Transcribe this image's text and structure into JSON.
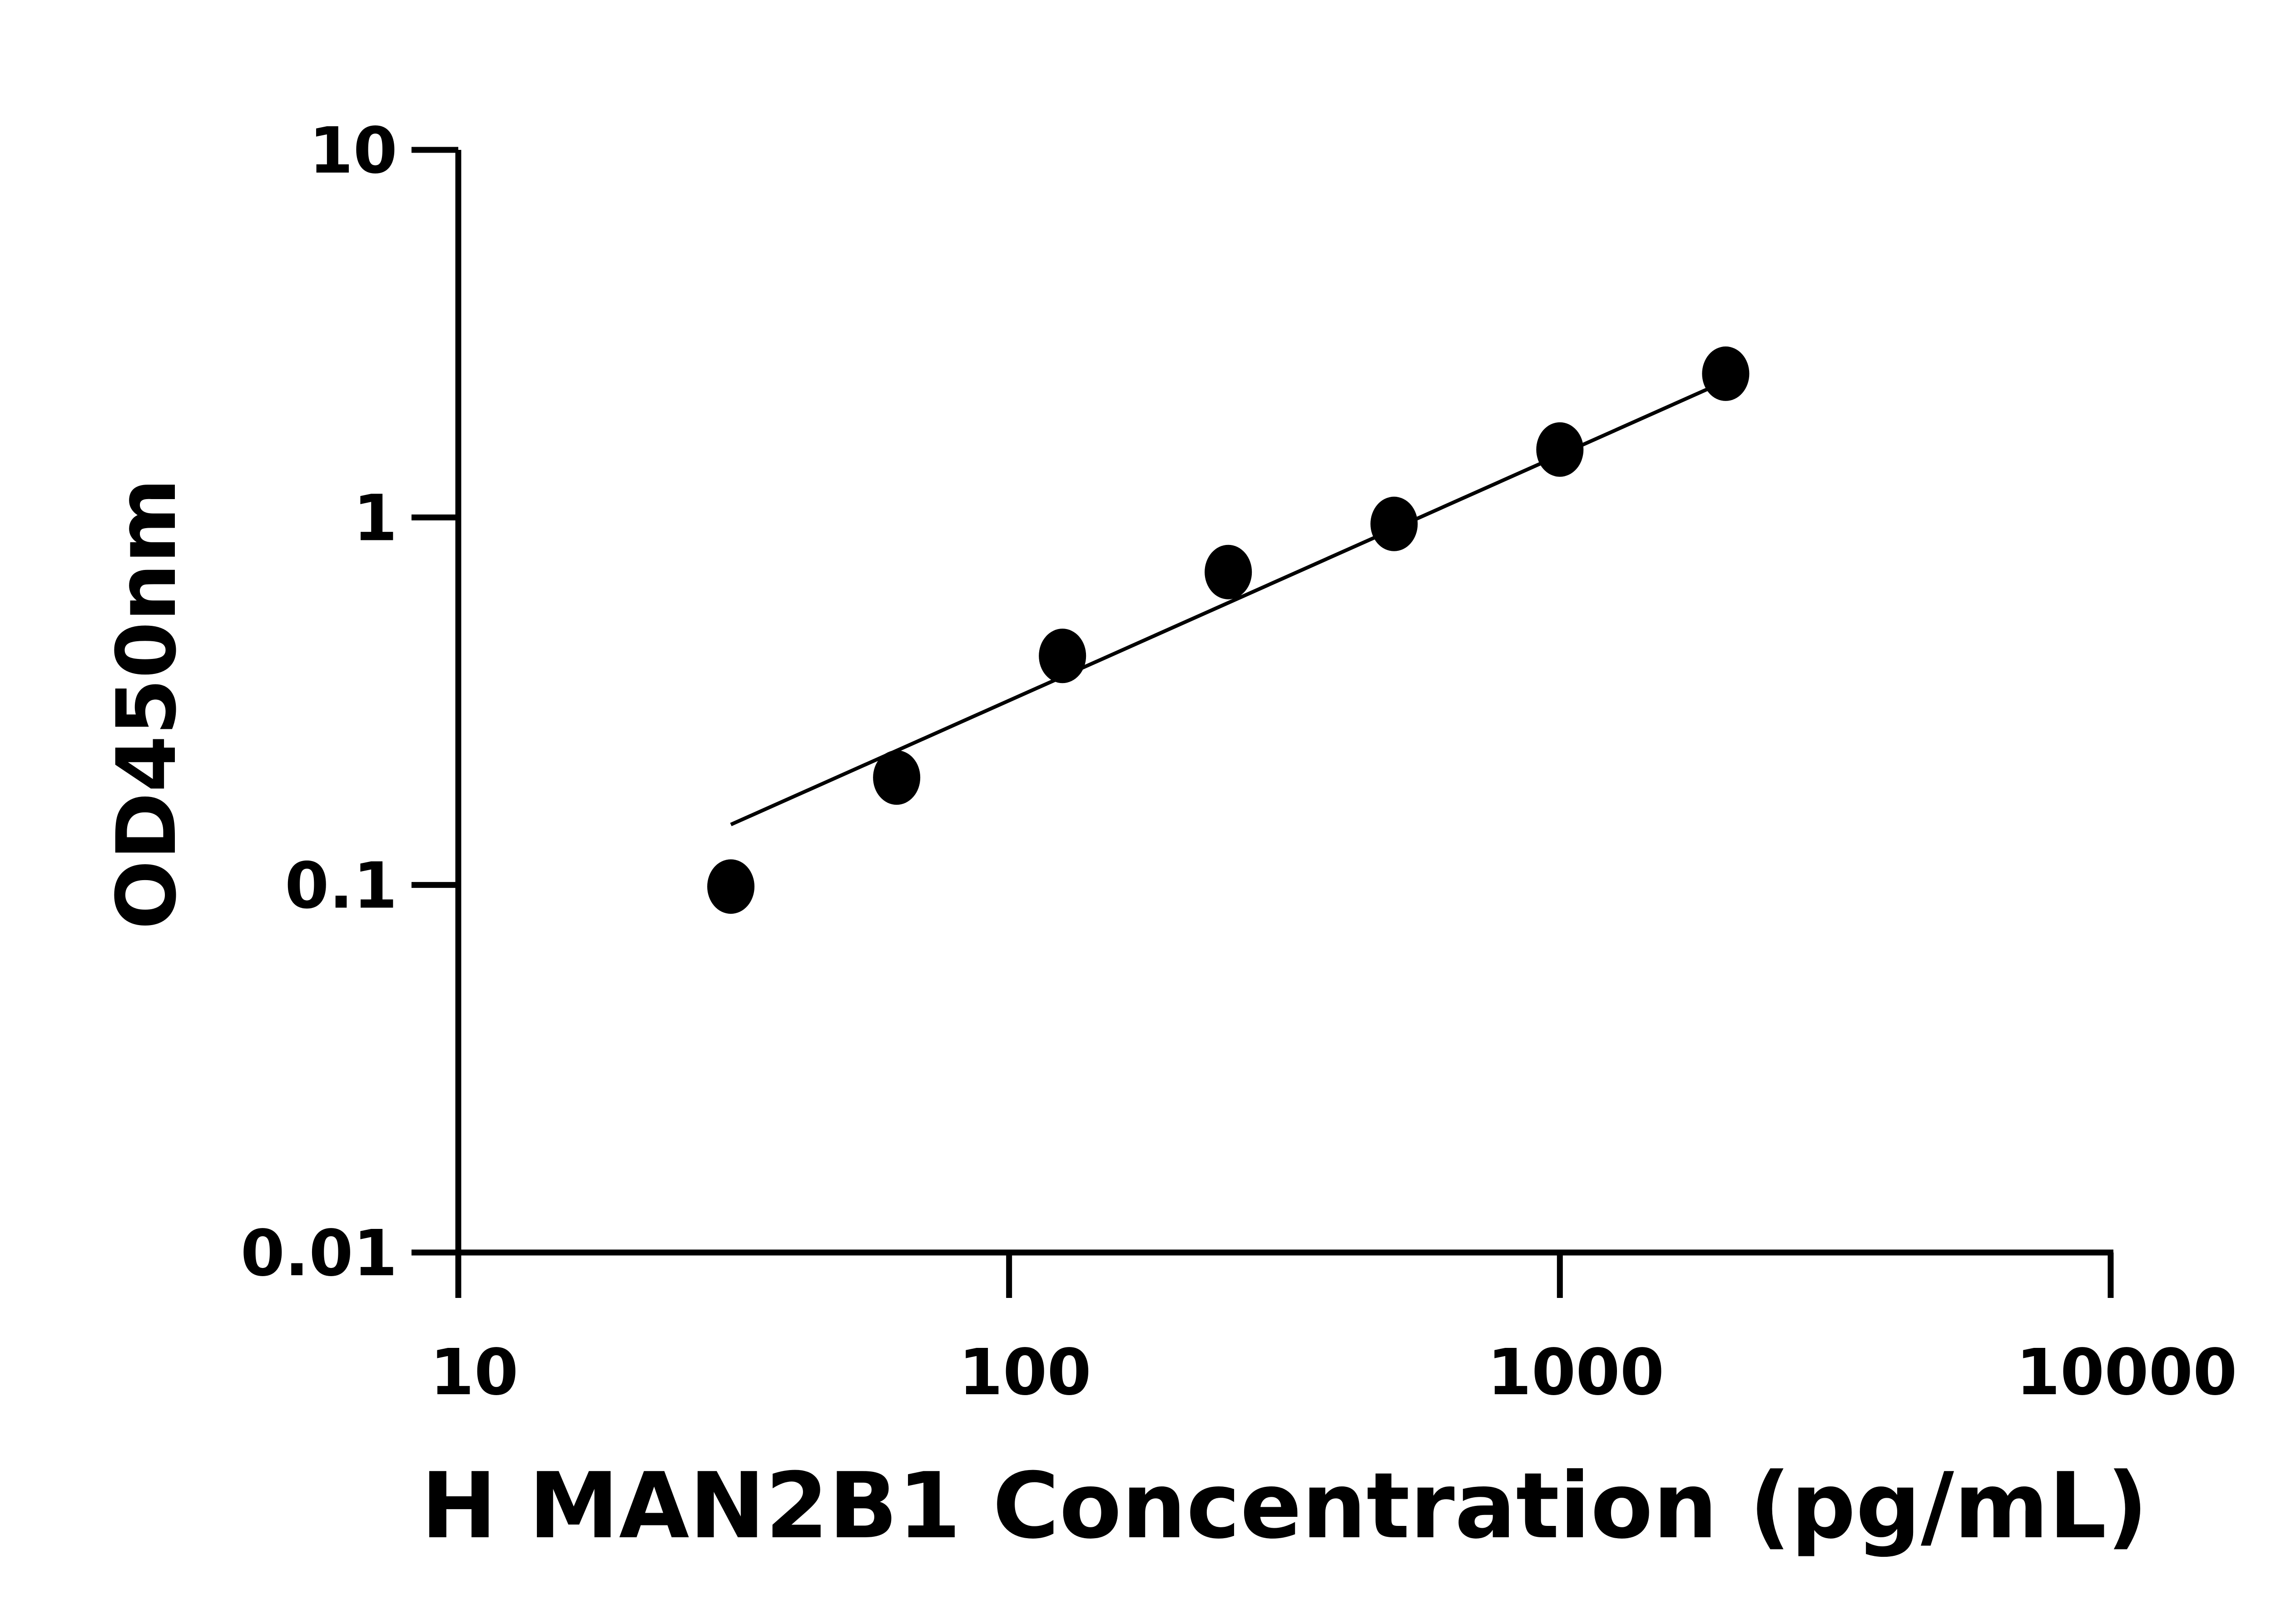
{
  "chart_data": {
    "type": "scatter",
    "title": "",
    "xlabel": "H MAN2B1 Concentration (pg/mL)",
    "ylabel": "OD450nm",
    "x_scale": "log",
    "y_scale": "log",
    "xlim": [
      10,
      10000
    ],
    "ylim": [
      0.01,
      10
    ],
    "x_ticks": [
      "10",
      "100",
      "1000",
      "10000"
    ],
    "y_ticks": [
      "0.01",
      "0.1",
      "1",
      "10"
    ],
    "grid": false,
    "series": [
      {
        "x": [
          31.25,
          62.5,
          125,
          250,
          500,
          1000,
          2000
        ],
        "y": [
          0.099,
          0.196,
          0.42,
          0.71,
          0.96,
          1.53,
          2.46
        ],
        "marker_color": "#000000"
      }
    ],
    "fit_line": {
      "x": [
        31.25,
        2000
      ],
      "y": [
        0.146,
        2.35
      ],
      "color": "#000000"
    }
  }
}
